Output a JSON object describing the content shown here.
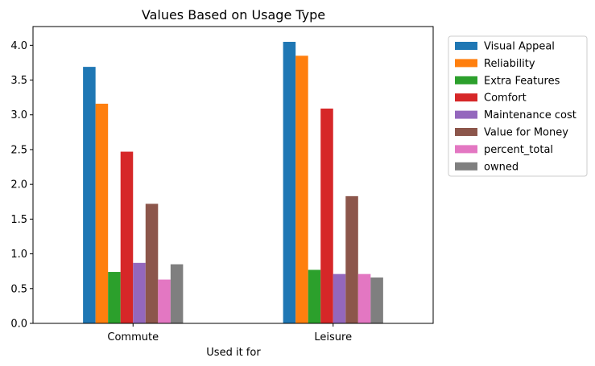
{
  "chart_data": {
    "type": "bar",
    "title": "Values Based on Usage Type",
    "xlabel": "Used it for",
    "ylabel": "",
    "categories": [
      "Commute",
      "Leisure"
    ],
    "ylim": [
      0,
      4.27
    ],
    "yticks": [
      "0.0",
      "0.5",
      "1.0",
      "1.5",
      "2.0",
      "2.5",
      "3.0",
      "3.5",
      "4.0"
    ],
    "grid": false,
    "legend_position": "outside-right",
    "series": [
      {
        "name": "Visual Appeal",
        "color": "#1f77b4",
        "values": [
          3.69,
          4.05
        ]
      },
      {
        "name": "Reliability",
        "color": "#ff7f0e",
        "values": [
          3.16,
          3.85
        ]
      },
      {
        "name": "Extra Features",
        "color": "#2ca02c",
        "values": [
          0.74,
          0.77
        ]
      },
      {
        "name": "Comfort",
        "color": "#d62728",
        "values": [
          2.47,
          3.09
        ]
      },
      {
        "name": "Maintenance cost",
        "color": "#9467bd",
        "values": [
          0.87,
          0.71
        ]
      },
      {
        "name": "Value for Money",
        "color": "#8c564b",
        "values": [
          1.72,
          1.83
        ]
      },
      {
        "name": "percent_total",
        "color": "#e377c2",
        "values": [
          0.63,
          0.71
        ]
      },
      {
        "name": "owned",
        "color": "#7f7f7f",
        "values": [
          0.85,
          0.66
        ]
      }
    ]
  }
}
